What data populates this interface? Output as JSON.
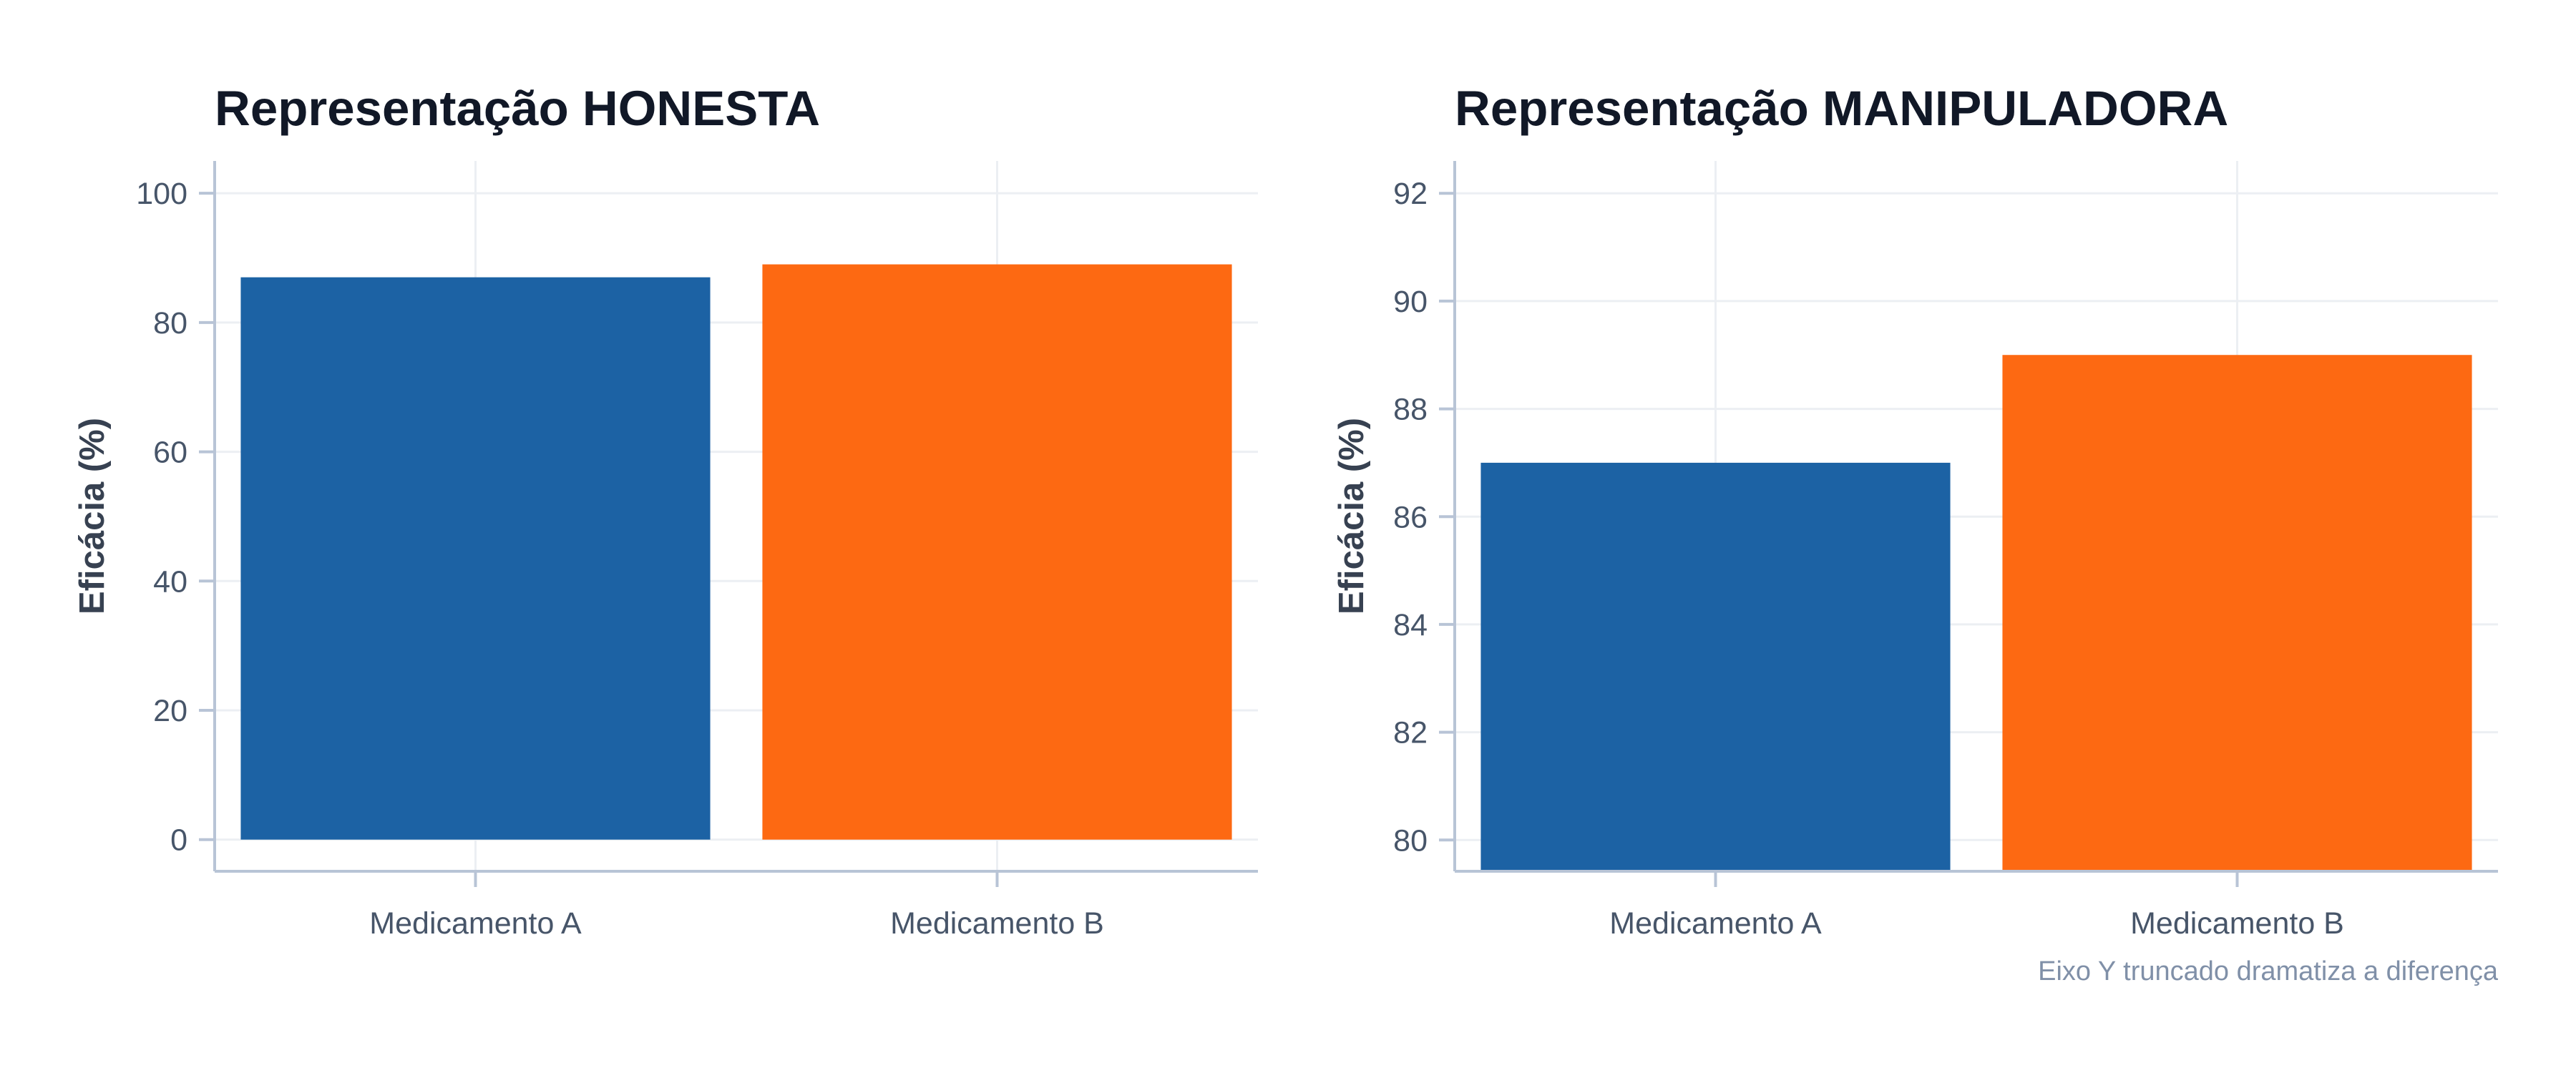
{
  "chart_data": [
    {
      "type": "bar",
      "title": "Representação HONESTA",
      "xlabel": "",
      "ylabel": "Eficácia (%)",
      "categories": [
        "Medicamento A",
        "Medicamento B"
      ],
      "values": [
        87,
        89
      ],
      "ylim": [
        -4.9,
        105
      ],
      "yticks": [
        0,
        20,
        40,
        60,
        80,
        100
      ],
      "colors": [
        "#1c62a4",
        "#fd6912"
      ],
      "grid": true,
      "caption": ""
    },
    {
      "type": "bar",
      "title": "Representação MANIPULADORA",
      "xlabel": "",
      "ylabel": "Eficácia (%)",
      "categories": [
        "Medicamento A",
        "Medicamento B"
      ],
      "values": [
        87,
        89
      ],
      "ylim": [
        79.42,
        92.6
      ],
      "yticks": [
        80,
        82,
        84,
        86,
        88,
        90,
        92
      ],
      "colors": [
        "#1c62a4",
        "#fd6912"
      ],
      "grid": true,
      "caption": "Eixo Y truncado dramatiza a diferença"
    }
  ]
}
